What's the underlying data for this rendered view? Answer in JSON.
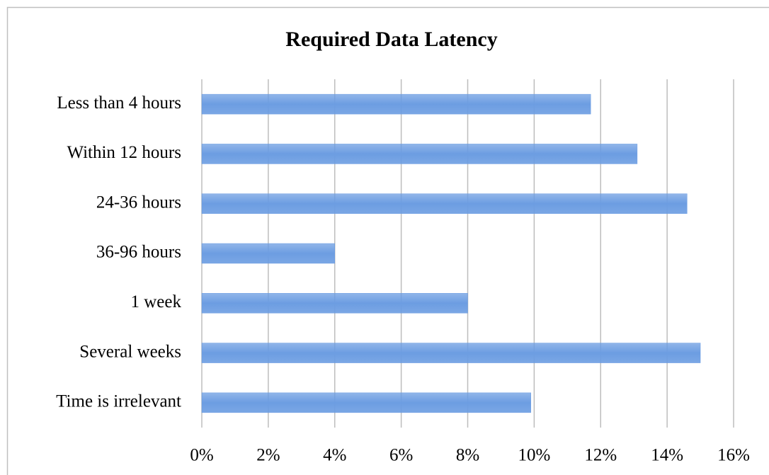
{
  "chart_data": {
    "type": "bar",
    "orientation": "horizontal",
    "title": "Required Data Latency",
    "categories": [
      "Less than 4 hours",
      "Within 12 hours",
      "24-36 hours",
      "36-96 hours",
      "1 week",
      "Several weeks",
      "Time is irrelevant"
    ],
    "values": [
      11.7,
      13.1,
      14.6,
      4.0,
      8.0,
      15.0,
      9.9
    ],
    "color": "#6c9de2",
    "xlim": [
      0,
      16
    ],
    "xticks": [
      {
        "value": 0,
        "label": "0%"
      },
      {
        "value": 2,
        "label": "2%"
      },
      {
        "value": 4,
        "label": "4%"
      },
      {
        "value": 6,
        "label": "6%"
      },
      {
        "value": 8,
        "label": "8%"
      },
      {
        "value": 10,
        "label": "10%"
      },
      {
        "value": 12,
        "label": "12%"
      },
      {
        "value": 14,
        "label": "14%"
      },
      {
        "value": 16,
        "label": "16%"
      }
    ],
    "grid": true
  }
}
